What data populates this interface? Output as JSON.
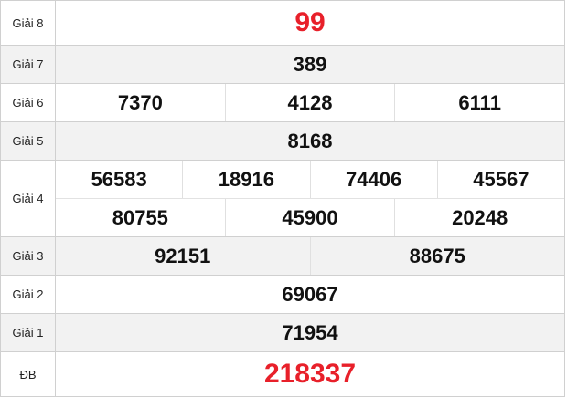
{
  "prizes": [
    {
      "label": "Giải 8",
      "rows": [
        [
          "99"
        ]
      ],
      "highlight": true
    },
    {
      "label": "Giải 7",
      "rows": [
        [
          "389"
        ]
      ]
    },
    {
      "label": "Giải 6",
      "rows": [
        [
          "7370",
          "4128",
          "6111"
        ]
      ]
    },
    {
      "label": "Giải 5",
      "rows": [
        [
          "8168"
        ]
      ]
    },
    {
      "label": "Giải 4",
      "rows": [
        [
          "56583",
          "18916",
          "74406",
          "45567"
        ],
        [
          "80755",
          "45900",
          "20248"
        ]
      ]
    },
    {
      "label": "Giải 3",
      "rows": [
        [
          "92151",
          "88675"
        ]
      ]
    },
    {
      "label": "Giải 2",
      "rows": [
        [
          "69067"
        ]
      ]
    },
    {
      "label": "Giải 1",
      "rows": [
        [
          "71954"
        ]
      ]
    },
    {
      "label": "ĐB",
      "rows": [
        [
          "218337"
        ]
      ],
      "highlight": true
    }
  ],
  "colors": {
    "highlight": "#e8202a",
    "alt_row": "#f2f2f2",
    "border": "#d0d0d0"
  }
}
